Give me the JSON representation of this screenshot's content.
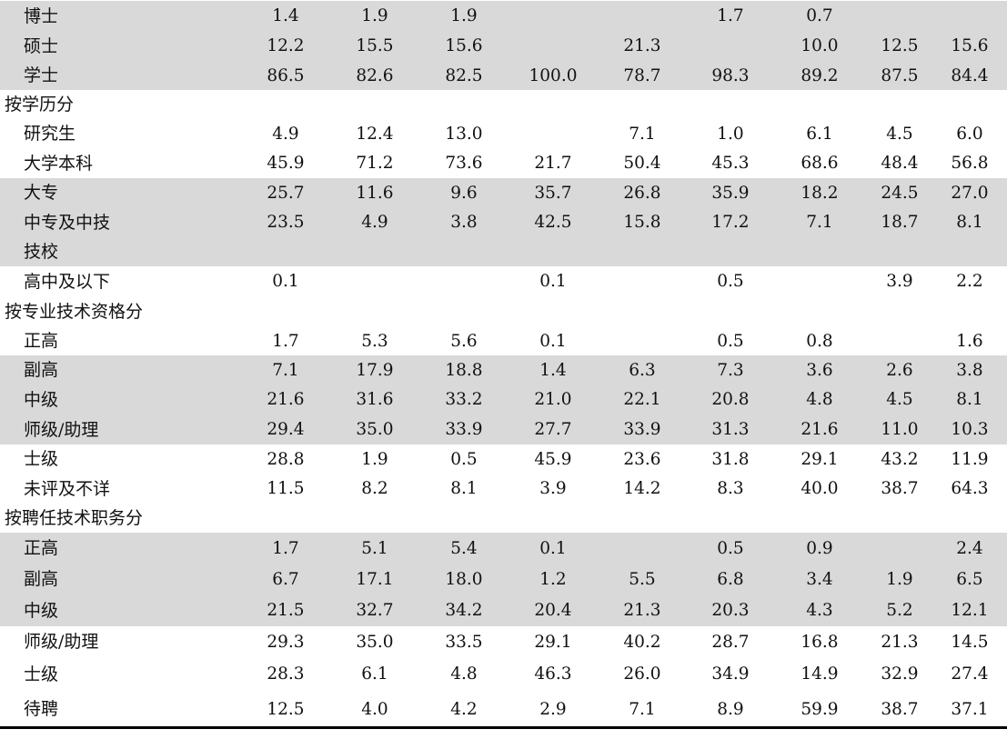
{
  "rows": [
    {
      "label": "博士",
      "values": [
        "1.4",
        "1.9",
        "1.9",
        "",
        "",
        "1.7",
        "0.7",
        "",
        ""
      ],
      "kind": "item",
      "shaded": true
    },
    {
      "label": "硕士",
      "values": [
        "12.2",
        "15.5",
        "15.6",
        "",
        "21.3",
        "",
        "10.0",
        "12.5",
        "15.6"
      ],
      "kind": "item",
      "shaded": true
    },
    {
      "label": "学士",
      "values": [
        "86.5",
        "82.6",
        "82.5",
        "100.0",
        "78.7",
        "98.3",
        "89.2",
        "87.5",
        "84.4"
      ],
      "kind": "item",
      "shaded": true
    },
    {
      "label": "按学历分",
      "values": [
        "",
        "",
        "",
        "",
        "",
        "",
        "",
        "",
        ""
      ],
      "kind": "heading",
      "shaded": false
    },
    {
      "label": "研究生",
      "values": [
        "4.9",
        "12.4",
        "13.0",
        "",
        "7.1",
        "1.0",
        "6.1",
        "4.5",
        "6.0"
      ],
      "kind": "item",
      "shaded": false
    },
    {
      "label": "大学本科",
      "values": [
        "45.9",
        "71.2",
        "73.6",
        "21.7",
        "50.4",
        "45.3",
        "68.6",
        "48.4",
        "56.8"
      ],
      "kind": "item",
      "shaded": false
    },
    {
      "label": "大专",
      "values": [
        "25.7",
        "11.6",
        "9.6",
        "35.7",
        "26.8",
        "35.9",
        "18.2",
        "24.5",
        "27.0"
      ],
      "kind": "item",
      "shaded": true
    },
    {
      "label": "中专及中技",
      "values": [
        "23.5",
        "4.9",
        "3.8",
        "42.5",
        "15.8",
        "17.2",
        "7.1",
        "18.7",
        "8.1"
      ],
      "kind": "item",
      "shaded": true
    },
    {
      "label": "技校",
      "values": [
        "",
        "",
        "",
        "",
        "",
        "",
        "",
        "",
        ""
      ],
      "kind": "item",
      "shaded": true
    },
    {
      "label": "高中及以下",
      "values": [
        "0.1",
        "",
        "",
        "0.1",
        "",
        "0.5",
        "",
        "3.9",
        "2.2"
      ],
      "kind": "item",
      "shaded": false
    },
    {
      "label": "按专业技术资格分",
      "values": [
        "",
        "",
        "",
        "",
        "",
        "",
        "",
        "",
        ""
      ],
      "kind": "heading",
      "shaded": false
    },
    {
      "label": "正高",
      "values": [
        "1.7",
        "5.3",
        "5.6",
        "0.1",
        "",
        "0.5",
        "0.8",
        "",
        "1.6"
      ],
      "kind": "item",
      "shaded": false
    },
    {
      "label": "副高",
      "values": [
        "7.1",
        "17.9",
        "18.8",
        "1.4",
        "6.3",
        "7.3",
        "3.6",
        "2.6",
        "3.8"
      ],
      "kind": "item",
      "shaded": true
    },
    {
      "label": "中级",
      "values": [
        "21.6",
        "31.6",
        "33.2",
        "21.0",
        "22.1",
        "20.8",
        "4.8",
        "4.5",
        "8.1"
      ],
      "kind": "item",
      "shaded": true
    },
    {
      "label": "师级/助理",
      "values": [
        "29.4",
        "35.0",
        "33.9",
        "27.7",
        "33.9",
        "31.3",
        "21.6",
        "11.0",
        "10.3"
      ],
      "kind": "item",
      "shaded": true
    },
    {
      "label": "士级",
      "values": [
        "28.8",
        "1.9",
        "0.5",
        "45.9",
        "23.6",
        "31.8",
        "29.1",
        "43.2",
        "11.9"
      ],
      "kind": "item",
      "shaded": false
    },
    {
      "label": "未评及不详",
      "values": [
        "11.5",
        "8.2",
        "8.1",
        "3.9",
        "14.2",
        "8.3",
        "40.0",
        "38.7",
        "64.3"
      ],
      "kind": "item",
      "shaded": false
    },
    {
      "label": "按聘任技术职务分",
      "values": [
        "",
        "",
        "",
        "",
        "",
        "",
        "",
        "",
        ""
      ],
      "kind": "heading",
      "shaded": false
    },
    {
      "label": "正高",
      "values": [
        "1.7",
        "5.1",
        "5.4",
        "0.1",
        "",
        "0.5",
        "0.9",
        "",
        "2.4"
      ],
      "kind": "item",
      "shaded": true
    },
    {
      "label": "副高",
      "values": [
        "6.7",
        "17.1",
        "18.0",
        "1.2",
        "5.5",
        "6.8",
        "3.4",
        "1.9",
        "6.5"
      ],
      "kind": "item",
      "shaded": true
    },
    {
      "label": "中级",
      "values": [
        "21.5",
        "32.7",
        "34.2",
        "20.4",
        "21.3",
        "20.3",
        "4.3",
        "5.2",
        "12.1"
      ],
      "kind": "item",
      "shaded": true
    },
    {
      "label": "师级/助理",
      "values": [
        "29.3",
        "35.0",
        "33.5",
        "29.1",
        "40.2",
        "28.7",
        "16.8",
        "21.3",
        "14.5"
      ],
      "kind": "item",
      "shaded": false
    },
    {
      "label": "士级",
      "values": [
        "28.3",
        "6.1",
        "4.8",
        "46.3",
        "26.0",
        "34.9",
        "14.9",
        "32.9",
        "27.4"
      ],
      "kind": "item",
      "shaded": false
    },
    {
      "label": "待聘",
      "values": [
        "12.5",
        "4.0",
        "4.2",
        "2.9",
        "7.1",
        "8.9",
        "59.9",
        "38.7",
        "37.1"
      ],
      "kind": "item",
      "shaded": false
    }
  ]
}
